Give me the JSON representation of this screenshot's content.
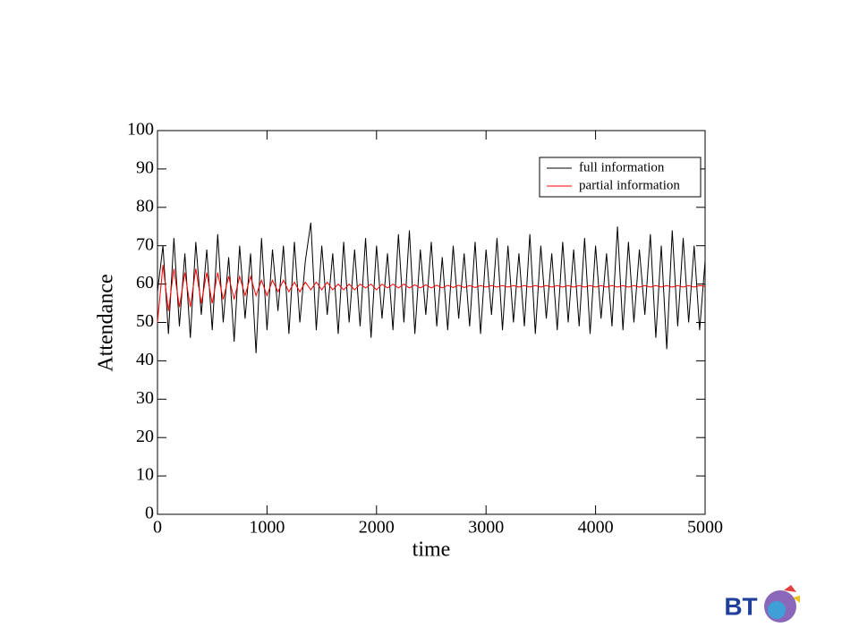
{
  "chart_data": {
    "type": "line",
    "xlabel": "time",
    "ylabel": "Attendance",
    "x": [
      0,
      50,
      100,
      150,
      200,
      250,
      300,
      350,
      400,
      450,
      500,
      550,
      600,
      650,
      700,
      750,
      800,
      850,
      900,
      950,
      1000,
      1050,
      1100,
      1150,
      1200,
      1250,
      1300,
      1350,
      1400,
      1450,
      1500,
      1550,
      1600,
      1650,
      1700,
      1750,
      1800,
      1850,
      1900,
      1950,
      2000,
      2050,
      2100,
      2150,
      2200,
      2250,
      2300,
      2350,
      2400,
      2450,
      2500,
      2550,
      2600,
      2650,
      2700,
      2750,
      2800,
      2850,
      2900,
      2950,
      3000,
      3050,
      3100,
      3150,
      3200,
      3250,
      3300,
      3350,
      3400,
      3450,
      3500,
      3550,
      3600,
      3650,
      3700,
      3750,
      3800,
      3850,
      3900,
      3950,
      4000,
      4050,
      4100,
      4150,
      4200,
      4250,
      4300,
      4350,
      4400,
      4450,
      4500,
      4550,
      4600,
      4650,
      4700,
      4750,
      4800,
      4850,
      4900,
      4950,
      5000
    ],
    "series": [
      {
        "name": "full information",
        "color": "#000000",
        "values": [
          58,
          70,
          47,
          72,
          49,
          68,
          46,
          71,
          52,
          69,
          48,
          73,
          50,
          67,
          45,
          70,
          51,
          68,
          42,
          72,
          48,
          69,
          53,
          70,
          47,
          71,
          50,
          66,
          76,
          48,
          70,
          52,
          68,
          47,
          71,
          50,
          69,
          49,
          72,
          46,
          70,
          51,
          68,
          48,
          73,
          50,
          74,
          47,
          69,
          52,
          71,
          49,
          67,
          48,
          70,
          51,
          68,
          49,
          71,
          47,
          69,
          52,
          72,
          48,
          70,
          50,
          68,
          49,
          73,
          47,
          70,
          51,
          68,
          48,
          71,
          50,
          69,
          49,
          72,
          47,
          70,
          51,
          68,
          49,
          75,
          48,
          71,
          50,
          69,
          52,
          73,
          46,
          70,
          43,
          74,
          49,
          72,
          50,
          70,
          48,
          66
        ]
      },
      {
        "name": "partial information",
        "color": "#ff0000",
        "values": [
          50,
          65,
          53,
          64,
          54,
          63,
          54,
          64,
          55,
          63,
          55,
          63,
          56,
          62,
          56,
          62,
          57,
          62,
          57,
          61,
          57,
          61,
          58,
          61,
          58,
          60.5,
          58,
          60.5,
          58.5,
          60.5,
          58.5,
          60.5,
          58.5,
          60,
          58.5,
          60,
          58.5,
          60,
          59,
          60,
          58.5,
          60,
          59,
          60,
          59,
          60,
          59,
          59.8,
          59,
          59.8,
          59,
          59.7,
          59,
          59.7,
          59.1,
          59.7,
          59.1,
          59.6,
          59.1,
          59.6,
          59.2,
          59.6,
          59.2,
          59.6,
          59.2,
          59.6,
          59.2,
          59.6,
          59.2,
          59.6,
          59.2,
          59.6,
          59.2,
          59.6,
          59.2,
          59.6,
          59.2,
          59.6,
          59.2,
          59.6,
          59.2,
          59.6,
          59.2,
          59.6,
          59.2,
          59.6,
          59.2,
          59.6,
          59.2,
          59.6,
          59.2,
          59.6,
          59.2,
          59.6,
          59.2,
          59.6,
          59.2,
          59.6,
          59.2,
          59.6,
          59.4
        ]
      }
    ],
    "xlim": [
      0,
      5000
    ],
    "xticks": [
      0,
      1000,
      2000,
      3000,
      4000,
      5000
    ],
    "ylim": [
      0,
      100
    ],
    "yticks": [
      0,
      10,
      20,
      30,
      40,
      50,
      60,
      70,
      80,
      90,
      100
    ],
    "grid": false,
    "legend": "upper-right"
  },
  "logo": {
    "text": "BT"
  }
}
